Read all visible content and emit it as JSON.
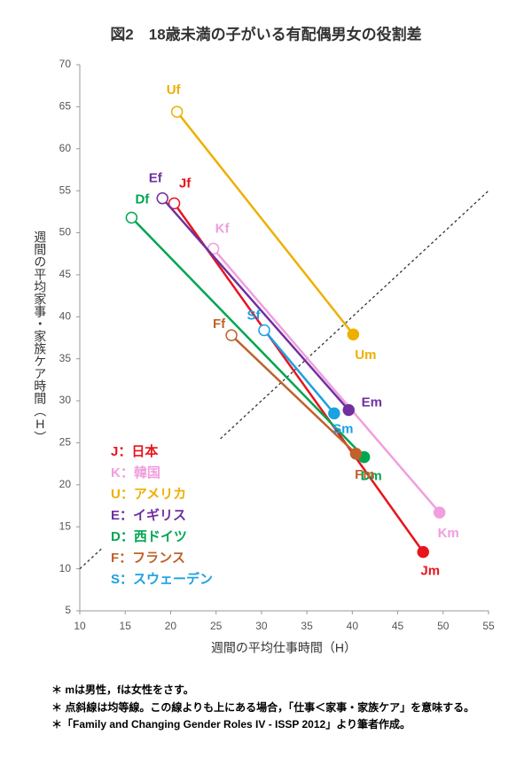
{
  "chart_data": {
    "type": "scatter",
    "title": "図2　18歳未満の子がいる有配偶男女の役割差",
    "xlabel": "週間の平均仕事時間（H）",
    "ylabel": "週間の平均家事・家族ケア時間（H）",
    "xlim": [
      10,
      55
    ],
    "xticks": [
      10,
      15,
      20,
      25,
      30,
      35,
      40,
      45,
      50,
      55
    ],
    "ylim": [
      5,
      70
    ],
    "yticks": [
      5,
      10,
      15,
      20,
      25,
      30,
      35,
      40,
      45,
      50,
      55,
      60,
      65,
      70
    ],
    "series": [
      {
        "name": "J：日本",
        "color": "#e8141c",
        "labels": [
          "Jf",
          "Jm"
        ],
        "x": [
          20.4,
          47.8
        ],
        "values": [
          53.5,
          12.0
        ]
      },
      {
        "name": "K：韓国",
        "color": "#f19ede",
        "labels": [
          "Kf",
          "Km"
        ],
        "x": [
          24.7,
          49.6
        ],
        "values": [
          48.1,
          16.7
        ]
      },
      {
        "name": "U：アメリカ",
        "color": "#eeb000",
        "labels": [
          "Uf",
          "Um"
        ],
        "x": [
          20.7,
          40.1
        ],
        "values": [
          64.4,
          37.9
        ]
      },
      {
        "name": "E：イギリス",
        "color": "#7030a0",
        "labels": [
          "Ef",
          "Em"
        ],
        "x": [
          19.1,
          39.6
        ],
        "values": [
          54.1,
          28.9
        ]
      },
      {
        "name": "D：西ドイツ",
        "color": "#00a650",
        "labels": [
          "Df",
          "Dm"
        ],
        "x": [
          15.7,
          41.3
        ],
        "values": [
          51.8,
          23.3
        ]
      },
      {
        "name": "F：フランス",
        "color": "#c0622c",
        "labels": [
          "Ff",
          "Fm"
        ],
        "x": [
          26.7,
          40.4
        ],
        "values": [
          37.8,
          23.7
        ]
      },
      {
        "name": "S：スウェーデン",
        "color": "#1ba1e2",
        "labels": [
          "Sf",
          "Sm"
        ],
        "x": [
          30.3,
          38.0
        ],
        "values": [
          38.4,
          28.5
        ]
      }
    ],
    "notes": [
      "＊ mは男性，fは女性をさす。",
      "＊ 点斜線は均等線。この線よりも上にある場合，「仕事＜家事・家族ケア」を意味する。",
      "＊「Family and Changing Gender Roles IV - ISSP 2012」より筆者作成。"
    ]
  }
}
